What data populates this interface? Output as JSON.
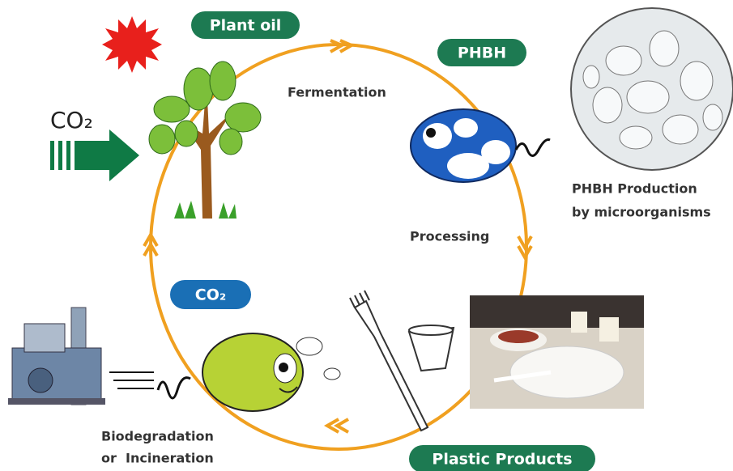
{
  "labels": {
    "plant_oil": "Plant oil",
    "phbh": "PHBH",
    "fermentation": "Fermentation",
    "co2_in": "CO₂",
    "phbh_production": [
      "PHBH Production",
      "by microorganisms"
    ],
    "processing": "Processing",
    "co2_out": "CO₂",
    "biodegradation": [
      "Biodegradation",
      "or  Incineration"
    ],
    "plastic_products": "Plastic Products"
  }
}
